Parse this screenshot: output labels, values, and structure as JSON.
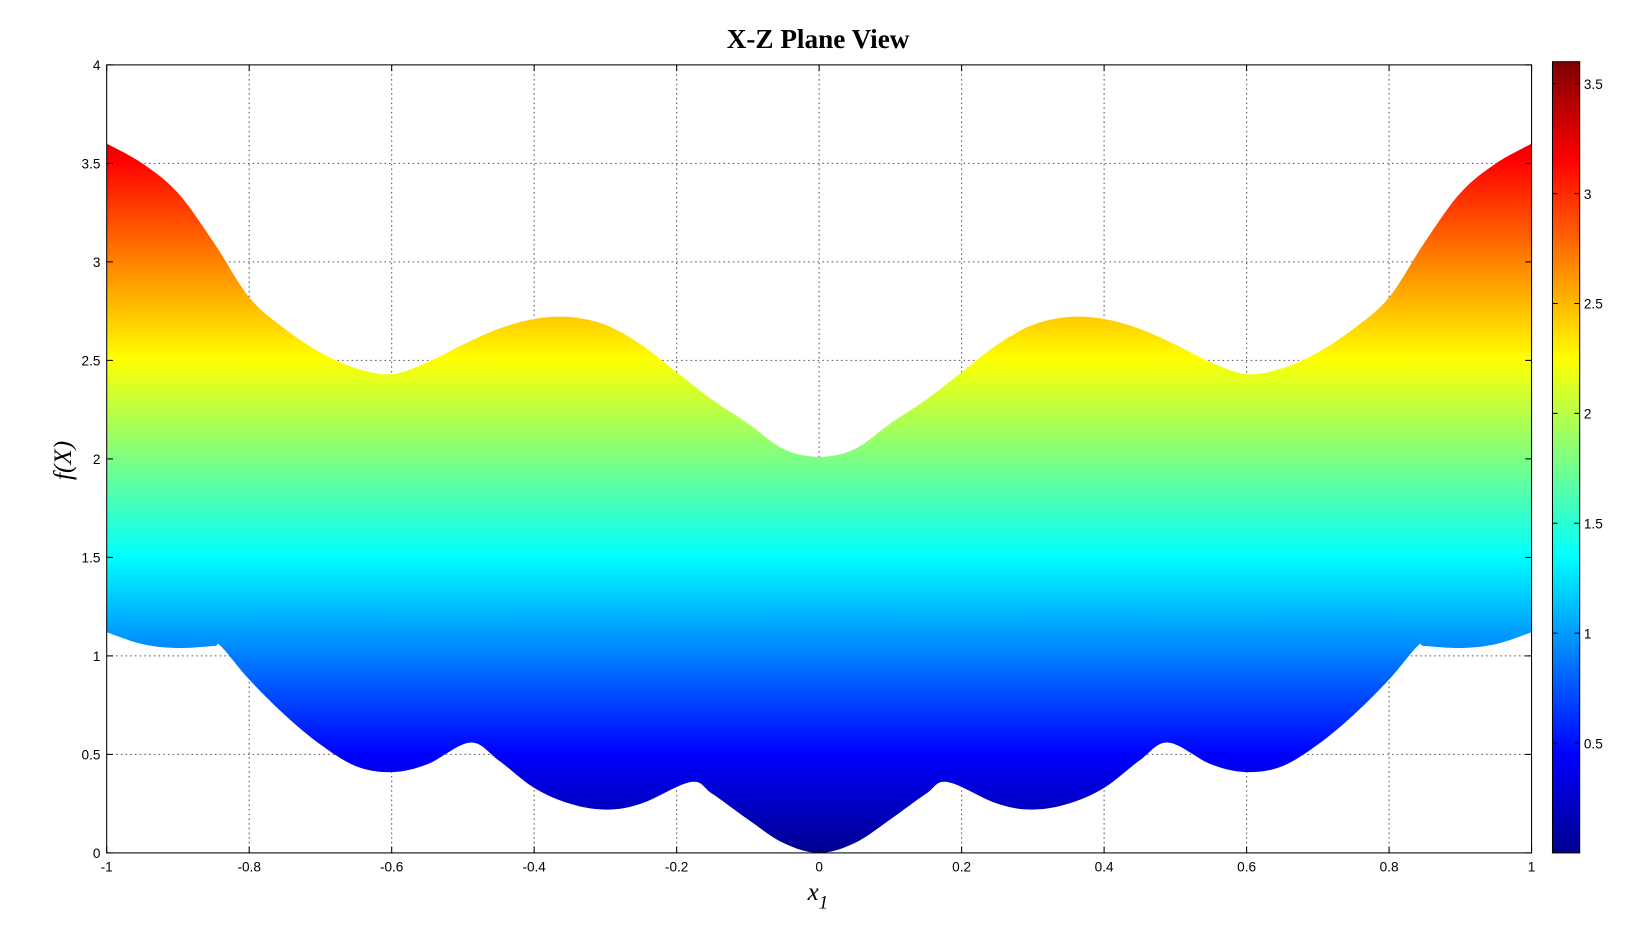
{
  "chart_data": {
    "type": "area",
    "title": "X-Z Plane View",
    "xlabel": "x",
    "xlabel_subscript": "1",
    "ylabel": "f(X)",
    "xlim": [
      -1,
      1
    ],
    "ylim": [
      0,
      4
    ],
    "grid": true,
    "xticks": [
      "-1",
      "-0.8",
      "-0.6",
      "-0.4",
      "-0.2",
      "0",
      "0.2",
      "0.4",
      "0.6",
      "0.8",
      "1"
    ],
    "yticks": [
      "0",
      "0.5",
      "1",
      "1.5",
      "2",
      "2.5",
      "3",
      "3.5",
      "4"
    ],
    "colormap": "jet",
    "colorbar": {
      "range": [
        0,
        3.6
      ],
      "ticks": [
        "0.5",
        "1",
        "1.5",
        "2",
        "2.5",
        "3",
        "3.5"
      ],
      "placement": "right"
    },
    "upper_envelope": {
      "x": [
        -1,
        -0.95,
        -0.9,
        -0.85,
        -0.8,
        -0.75,
        -0.7,
        -0.65,
        -0.6,
        -0.55,
        -0.5,
        -0.45,
        -0.4,
        -0.35,
        -0.3,
        -0.25,
        -0.2,
        -0.15,
        -0.1,
        -0.05,
        0
      ],
      "y": [
        3.6,
        3.5,
        3.35,
        3.1,
        2.82,
        2.66,
        2.54,
        2.46,
        2.43,
        2.49,
        2.58,
        2.66,
        2.71,
        2.72,
        2.68,
        2.58,
        2.44,
        2.3,
        2.18,
        2.05,
        2.01
      ]
    },
    "lower_envelope": {
      "x": [
        -1,
        -0.95,
        -0.9,
        -0.85,
        -0.84,
        -0.8,
        -0.75,
        -0.7,
        -0.65,
        -0.6,
        -0.55,
        -0.49,
        -0.45,
        -0.4,
        -0.35,
        -0.3,
        -0.25,
        -0.18,
        -0.15,
        -0.1,
        -0.05,
        0
      ],
      "y": [
        1.12,
        1.06,
        1.04,
        1.05,
        1.05,
        0.88,
        0.7,
        0.55,
        0.44,
        0.41,
        0.45,
        0.56,
        0.47,
        0.33,
        0.25,
        0.22,
        0.25,
        0.36,
        0.3,
        0.17,
        0.05,
        0
      ]
    },
    "symmetric_about_zero": true
  }
}
